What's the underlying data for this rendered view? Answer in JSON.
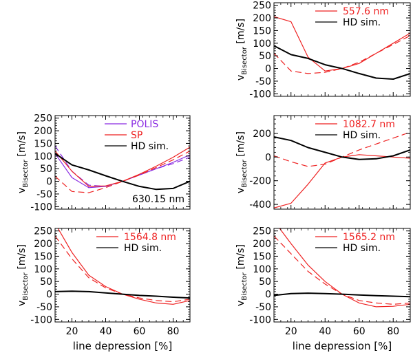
{
  "figure": {
    "xlabel": "line depression [%]",
    "ylabel_main": "v",
    "ylabel_sub": "Bisector",
    "ylabel_unit": "[m/s]"
  },
  "colors": {
    "sp": "#ee2222",
    "polis": "#8a2be2",
    "hd": "#000000"
  },
  "chart_data": [
    {
      "id": "p5576",
      "type": "line",
      "legend_line_label": "557.6 nm",
      "legend_hd_label": "HD sim.",
      "xlim": [
        10,
        90
      ],
      "ylim": [
        -110,
        260
      ],
      "xticks": [
        20,
        40,
        60,
        80
      ],
      "xtick_labels": [],
      "yticks": [
        -100,
        -50,
        0,
        50,
        100,
        150,
        200,
        250
      ],
      "series": [
        {
          "name": "SP solid",
          "color": "#ee2222",
          "style": "solid",
          "x": [
            10,
            20,
            30,
            40,
            50,
            60,
            70,
            80,
            90
          ],
          "y": [
            205,
            185,
            45,
            -10,
            0,
            20,
            60,
            100,
            140
          ]
        },
        {
          "name": "SP dashed",
          "color": "#ee2222",
          "style": "dashed",
          "x": [
            10,
            20,
            30,
            40,
            50,
            60,
            70,
            80,
            90
          ],
          "y": [
            60,
            -10,
            -20,
            -15,
            0,
            25,
            60,
            95,
            130
          ]
        },
        {
          "name": "HD sim.",
          "color": "#000000",
          "style": "solid",
          "width": 2,
          "x": [
            10,
            20,
            30,
            40,
            50,
            60,
            70,
            80,
            90
          ],
          "y": [
            90,
            55,
            40,
            15,
            0,
            -20,
            -38,
            -42,
            -20
          ]
        }
      ]
    },
    {
      "id": "p63015",
      "type": "line",
      "legend": [
        {
          "label": "POLIS",
          "color": "#8a2be2"
        },
        {
          "label": "SP",
          "color": "#ee2222"
        },
        {
          "label": "HD sim.",
          "color": "#000000"
        }
      ],
      "annotation": "630.15 nm",
      "xlim": [
        10,
        90
      ],
      "ylim": [
        -110,
        260
      ],
      "xticks": [
        20,
        40,
        60,
        80
      ],
      "xtick_labels": [],
      "yticks": [
        -100,
        -50,
        0,
        50,
        100,
        150,
        200,
        250
      ],
      "series": [
        {
          "name": "POLIS solid",
          "color": "#8a2be2",
          "style": "solid",
          "x": [
            10,
            20,
            30,
            40,
            50,
            60,
            70,
            80,
            90
          ],
          "y": [
            110,
            15,
            -25,
            -20,
            0,
            25,
            50,
            75,
            105
          ]
        },
        {
          "name": "POLIS dashed",
          "color": "#8a2be2",
          "style": "dashed",
          "x": [
            10,
            20,
            30,
            40,
            50,
            60,
            70,
            80,
            90
          ],
          "y": [
            140,
            40,
            -15,
            -20,
            0,
            25,
            50,
            70,
            95
          ]
        },
        {
          "name": "SP solid",
          "color": "#ee2222",
          "style": "solid",
          "x": [
            10,
            20,
            30,
            40,
            50,
            60,
            70,
            80,
            90
          ],
          "y": [
            120,
            40,
            -20,
            -18,
            0,
            28,
            60,
            95,
            135
          ]
        },
        {
          "name": "SP dashed",
          "color": "#ee2222",
          "style": "dashed",
          "x": [
            10,
            20,
            30,
            40,
            50,
            60,
            70,
            80,
            90
          ],
          "y": [
            20,
            -40,
            -45,
            -25,
            0,
            25,
            55,
            85,
            120
          ]
        },
        {
          "name": "HD sim.",
          "color": "#000000",
          "style": "solid",
          "width": 2,
          "x": [
            10,
            20,
            30,
            40,
            50,
            60,
            70,
            80,
            90
          ],
          "y": [
            110,
            65,
            45,
            22,
            0,
            -20,
            -32,
            -28,
            0
          ]
        }
      ]
    },
    {
      "id": "p10827",
      "type": "line",
      "legend_line_label": "1082.7 nm",
      "legend_hd_label": "HD sim.",
      "xlim": [
        10,
        90
      ],
      "ylim": [
        -440,
        350
      ],
      "xticks": [
        20,
        40,
        60,
        80
      ],
      "xtick_labels": [],
      "yticks": [
        -400,
        -200,
        0,
        200
      ],
      "series": [
        {
          "name": "SP solid",
          "color": "#ee2222",
          "style": "solid",
          "x": [
            10,
            20,
            30,
            40,
            50,
            60,
            70,
            80,
            90
          ],
          "y": [
            -430,
            -390,
            -230,
            -50,
            0,
            20,
            10,
            0,
            -10
          ]
        },
        {
          "name": "SP dashed",
          "color": "#ee2222",
          "style": "dashed",
          "x": [
            10,
            20,
            30,
            40,
            50,
            60,
            70,
            80,
            90
          ],
          "y": [
            10,
            -40,
            -80,
            -60,
            0,
            60,
            110,
            160,
            210
          ]
        },
        {
          "name": "HD sim.",
          "color": "#000000",
          "style": "solid",
          "width": 2,
          "x": [
            10,
            20,
            30,
            40,
            50,
            60,
            70,
            80,
            90
          ],
          "y": [
            170,
            140,
            80,
            40,
            0,
            -20,
            -15,
            10,
            60
          ]
        }
      ]
    },
    {
      "id": "p15648",
      "type": "line",
      "legend_line_label": "1564.8 nm",
      "legend_hd_label": "HD sim.",
      "xlim": [
        10,
        90
      ],
      "ylim": [
        -110,
        260
      ],
      "xticks": [
        20,
        40,
        60,
        80
      ],
      "xtick_labels": [
        "20",
        "40",
        "60",
        "80"
      ],
      "yticks": [
        -100,
        -50,
        0,
        50,
        100,
        150,
        200,
        250
      ],
      "series": [
        {
          "name": "SP solid",
          "color": "#ee2222",
          "style": "solid",
          "x": [
            10,
            20,
            30,
            40,
            50,
            60,
            70,
            80,
            90
          ],
          "y": [
            280,
            165,
            75,
            30,
            0,
            -20,
            -35,
            -40,
            -25
          ]
        },
        {
          "name": "SP dashed",
          "color": "#ee2222",
          "style": "dashed",
          "x": [
            10,
            20,
            30,
            40,
            50,
            60,
            70,
            80,
            90
          ],
          "y": [
            230,
            140,
            65,
            25,
            0,
            -15,
            -25,
            -30,
            -20
          ]
        },
        {
          "name": "HD sim.",
          "color": "#000000",
          "style": "solid",
          "width": 2,
          "x": [
            10,
            20,
            30,
            40,
            50,
            60,
            70,
            80,
            90
          ],
          "y": [
            10,
            12,
            10,
            5,
            0,
            -5,
            -8,
            -12,
            -15
          ]
        }
      ]
    },
    {
      "id": "p15652",
      "type": "line",
      "legend_line_label": "1565.2 nm",
      "legend_hd_label": "HD sim.",
      "xlim": [
        10,
        90
      ],
      "ylim": [
        -110,
        260
      ],
      "xticks": [
        20,
        40,
        60,
        80
      ],
      "xtick_labels": [
        "20",
        "40",
        "60",
        "80"
      ],
      "yticks": [
        -100,
        -50,
        0,
        50,
        100,
        150,
        200,
        250
      ],
      "series": [
        {
          "name": "SP solid",
          "color": "#ee2222",
          "style": "solid",
          "x": [
            10,
            20,
            30,
            40,
            50,
            60,
            70,
            80,
            90
          ],
          "y": [
            290,
            200,
            115,
            50,
            0,
            -35,
            -50,
            -48,
            -40
          ]
        },
        {
          "name": "SP dashed",
          "color": "#ee2222",
          "style": "dashed",
          "x": [
            10,
            20,
            30,
            40,
            50,
            60,
            70,
            80,
            90
          ],
          "y": [
            230,
            160,
            90,
            40,
            0,
            -25,
            -35,
            -40,
            -35
          ]
        },
        {
          "name": "HD sim.",
          "color": "#000000",
          "style": "solid",
          "width": 2,
          "x": [
            10,
            20,
            30,
            40,
            50,
            60,
            70,
            80,
            90
          ],
          "y": [
            -5,
            2,
            4,
            2,
            0,
            -3,
            -6,
            -8,
            -10
          ]
        }
      ]
    }
  ]
}
